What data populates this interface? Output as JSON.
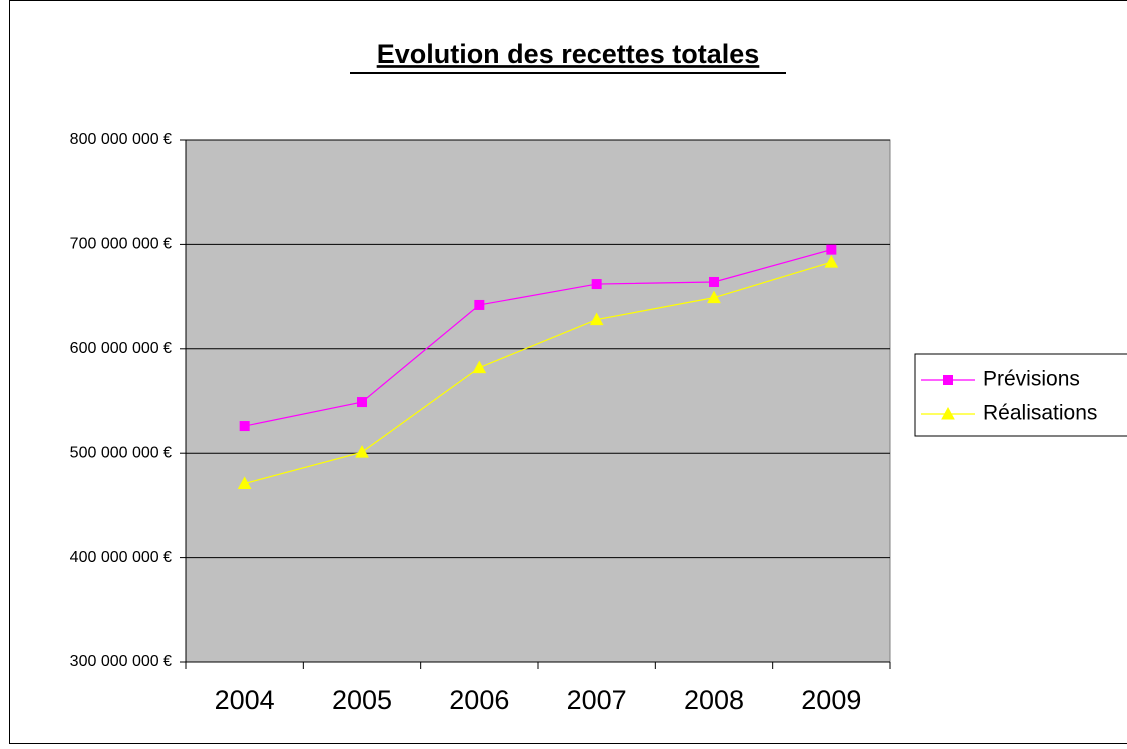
{
  "chart_data": {
    "type": "line",
    "title": "Evolution des recettes totales",
    "categories": [
      "2004",
      "2005",
      "2006",
      "2007",
      "2008",
      "2009"
    ],
    "series": [
      {
        "name": "Prévisions",
        "color": "#ff00ff",
        "marker": "square",
        "values": [
          526000000,
          549000000,
          642000000,
          662000000,
          664000000,
          695000000
        ]
      },
      {
        "name": "Réalisations",
        "color": "#ffff00",
        "marker": "triangle",
        "values": [
          471000000,
          501000000,
          582000000,
          628000000,
          649000000,
          683000000
        ]
      }
    ],
    "ylim": [
      300000000,
      800000000
    ],
    "yticks": [
      {
        "value": 300000000,
        "label": "300 000 000 €"
      },
      {
        "value": 400000000,
        "label": "400 000 000 €"
      },
      {
        "value": 500000000,
        "label": "500 000 000 €"
      },
      {
        "value": 600000000,
        "label": "600 000 000 €"
      },
      {
        "value": 700000000,
        "label": "700 000 000 €"
      },
      {
        "value": 800000000,
        "label": "800 000 000 €"
      }
    ],
    "grid": true,
    "plot_background": "#c0c0c0",
    "legend": "right"
  }
}
